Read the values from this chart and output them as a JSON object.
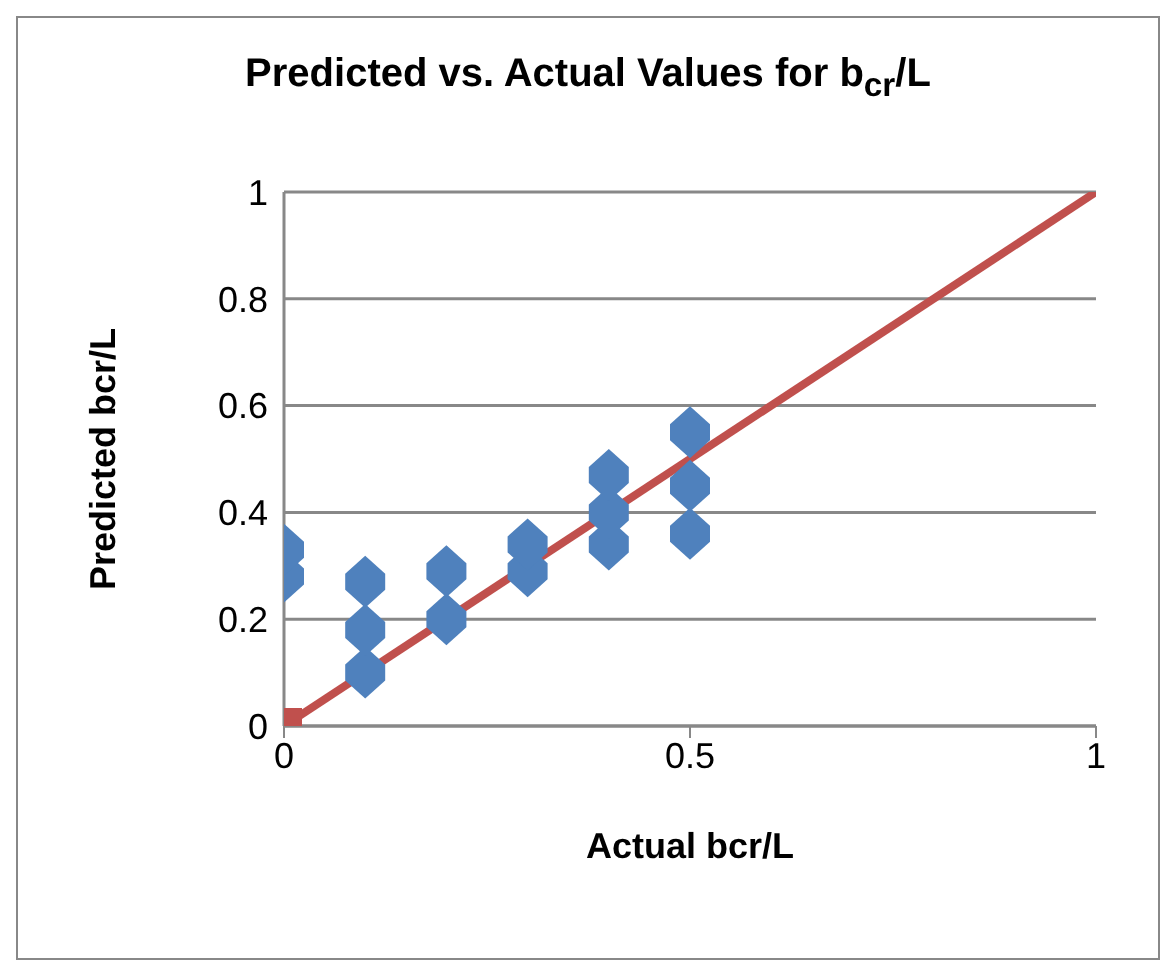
{
  "chart_data": {
    "type": "scatter",
    "title": "Predicted vs. Actual Values for b$_{cr}$/L",
    "xlabel": "Actual bcr/L",
    "ylabel": "Predicted bcr/L",
    "xlim": [
      0,
      1
    ],
    "xticks": [
      0,
      0.5,
      1
    ],
    "ylim": [
      0,
      1
    ],
    "yticks": [
      0,
      0.2,
      0.4,
      0.6,
      0.8,
      1
    ],
    "grid": "y",
    "series": [
      {
        "marker": "diamond",
        "color": "#4f81bd",
        "x": [
          0,
          0,
          0.1,
          0.1,
          0.1,
          0.2,
          0.2,
          0.3,
          0.3,
          0.4,
          0.4,
          0.4,
          0.5,
          0.5,
          0.5
        ],
        "values": [
          0.28,
          0.33,
          0.1,
          0.18,
          0.27,
          0.2,
          0.29,
          0.29,
          0.34,
          0.34,
          0.4,
          0.47,
          0.36,
          0.45,
          0.55
        ]
      },
      {
        "type": "line",
        "marker": "none",
        "color": "#c0504d",
        "x": [
          0,
          1
        ],
        "values": [
          0,
          1
        ]
      },
      {
        "marker": "square",
        "color": "#c0504d",
        "x": [
          0
        ],
        "values": [
          0
        ]
      }
    ]
  }
}
